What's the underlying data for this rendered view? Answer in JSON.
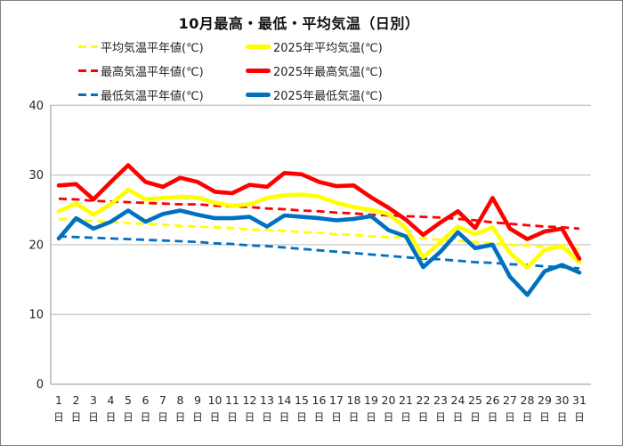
{
  "title": "10月最高・最低・平均気温（日別）",
  "colors": {
    "red": "#FF0000",
    "yellow": "#FFFF00",
    "blue": "#0070C0",
    "grid": "#C8C8C8",
    "axis": "#A9A9A9",
    "text": "#262626",
    "title_text": "#111111",
    "background": "#FFFFFF",
    "border": "#808080"
  },
  "chart_data": {
    "type": "line",
    "title": "10月最高・最低・平均気温（日別）",
    "xlabel": "",
    "ylabel": "",
    "x_suffix": "日",
    "days": [
      1,
      2,
      3,
      4,
      5,
      6,
      7,
      8,
      9,
      10,
      11,
      12,
      13,
      14,
      15,
      16,
      17,
      18,
      19,
      20,
      21,
      22,
      23,
      24,
      25,
      26,
      27,
      28,
      29,
      30,
      31
    ],
    "y_axis": {
      "min": 0,
      "max": 40,
      "tick_step": 10,
      "ticks": [
        0,
        10,
        20,
        30,
        40
      ]
    },
    "grid": true,
    "legend_position": "top-left",
    "series": [
      {
        "key": "normal-avg",
        "name": "平均気温平年値(℃)",
        "color": "yellow",
        "style": "dashed",
        "values": [
          23.7,
          23.6,
          23.4,
          23.3,
          23.1,
          23.0,
          22.9,
          22.7,
          22.6,
          22.5,
          22.4,
          22.2,
          22.1,
          22.0,
          21.8,
          21.7,
          21.5,
          21.4,
          21.2,
          21.1,
          21.0,
          20.9,
          20.7,
          20.6,
          20.4,
          20.2,
          20.0,
          19.9,
          19.7,
          19.5,
          19.4
        ]
      },
      {
        "key": "avg-2025",
        "name": "2025年平均気温(℃)",
        "color": "yellow",
        "style": "solid",
        "values": [
          24.8,
          25.9,
          24.3,
          25.8,
          27.9,
          26.5,
          26.7,
          26.9,
          26.8,
          26.0,
          25.6,
          25.8,
          26.7,
          27.1,
          27.2,
          26.9,
          26.0,
          25.4,
          25.0,
          24.4,
          22.4,
          18.2,
          20.4,
          22.6,
          21.5,
          22.5,
          18.8,
          16.7,
          19.3,
          19.8,
          17.5
        ]
      },
      {
        "key": "normal-max",
        "name": "最高気温平年値(℃)",
        "color": "red",
        "style": "dashed",
        "values": [
          26.6,
          26.5,
          26.3,
          26.2,
          26.1,
          26.0,
          25.9,
          25.8,
          25.8,
          25.6,
          25.5,
          25.4,
          25.2,
          25.1,
          24.9,
          24.8,
          24.6,
          24.5,
          24.3,
          24.2,
          24.1,
          24.0,
          23.9,
          23.7,
          23.5,
          23.2,
          23.0,
          22.8,
          22.6,
          22.5,
          22.3
        ]
      },
      {
        "key": "max-2025",
        "name": "2025年最高気温(℃)",
        "color": "red",
        "style": "solid",
        "values": [
          28.5,
          28.7,
          26.5,
          29.0,
          31.4,
          29.0,
          28.3,
          29.6,
          29.0,
          27.6,
          27.4,
          28.6,
          28.3,
          30.3,
          30.1,
          29.0,
          28.4,
          28.5,
          26.8,
          25.3,
          23.6,
          21.4,
          23.2,
          24.8,
          22.4,
          26.7,
          22.3,
          20.8,
          21.9,
          22.3,
          18.0
        ]
      },
      {
        "key": "normal-min",
        "name": "最低気温平年値(℃)",
        "color": "blue",
        "style": "dashed",
        "values": [
          21.2,
          21.1,
          21.0,
          20.9,
          20.8,
          20.7,
          20.6,
          20.5,
          20.4,
          20.2,
          20.1,
          19.9,
          19.8,
          19.6,
          19.4,
          19.2,
          19.0,
          18.8,
          18.6,
          18.4,
          18.2,
          18.0,
          17.9,
          17.7,
          17.5,
          17.4,
          17.2,
          17.1,
          16.9,
          16.8,
          16.6
        ]
      },
      {
        "key": "min-2025",
        "name": "2025年最低気温(℃)",
        "color": "blue",
        "style": "solid",
        "values": [
          20.9,
          23.8,
          22.3,
          23.3,
          24.9,
          23.3,
          24.4,
          24.9,
          24.3,
          23.8,
          23.8,
          24.0,
          22.6,
          24.2,
          24.0,
          23.8,
          23.5,
          23.7,
          24.1,
          22.1,
          21.2,
          16.8,
          19.0,
          21.8,
          19.5,
          20.0,
          15.4,
          12.8,
          16.2,
          17.1,
          16.0
        ]
      }
    ]
  }
}
